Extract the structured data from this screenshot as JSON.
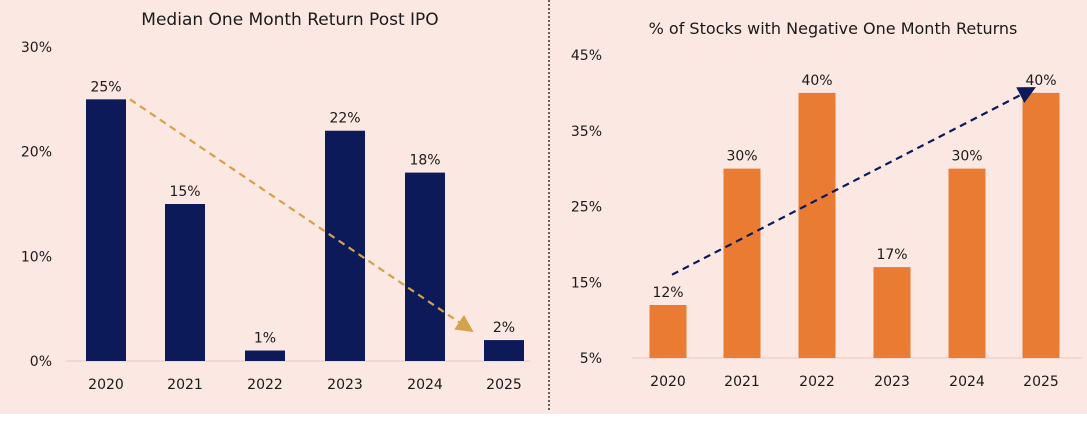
{
  "background": "#fce8e2",
  "chart_data": [
    {
      "type": "bar",
      "title": "Median One Month Return Post IPO",
      "categories": [
        "2020",
        "2021",
        "2022",
        "2023",
        "2024",
        "2025"
      ],
      "values": [
        25,
        15,
        1,
        22,
        18,
        2
      ],
      "data_labels": [
        "25%",
        "15%",
        "1%",
        "22%",
        "18%",
        "2%"
      ],
      "ylim": [
        0,
        30
      ],
      "yticks": [
        0,
        10,
        20,
        30
      ],
      "ytick_labels": [
        "0%",
        "10%",
        "20%",
        "30%"
      ],
      "bar_color": "#0c1a5a",
      "trend_arrow": {
        "from": [
          "2020",
          25
        ],
        "to": [
          "2025",
          3
        ],
        "color": "#d4a24c",
        "style": "dashed"
      },
      "grid": false
    },
    {
      "type": "bar",
      "title": "% of Stocks with Negative One Month Returns",
      "categories": [
        "2020",
        "2021",
        "2022",
        "2023",
        "2024",
        "2025"
      ],
      "values": [
        12,
        30,
        40,
        17,
        30,
        40
      ],
      "data_labels": [
        "12%",
        "30%",
        "40%",
        "17%",
        "30%",
        "40%"
      ],
      "ylim": [
        5,
        45
      ],
      "yticks": [
        5,
        15,
        25,
        35,
        45
      ],
      "ytick_labels": [
        "5%",
        "15%",
        "25%",
        "35%",
        "45%"
      ],
      "bar_color": "#e97b32",
      "trend_arrow": {
        "from": [
          "2020",
          16
        ],
        "to": [
          "2025",
          40.5
        ],
        "color": "#0c1a5a",
        "style": "dashed"
      },
      "grid": false
    }
  ]
}
